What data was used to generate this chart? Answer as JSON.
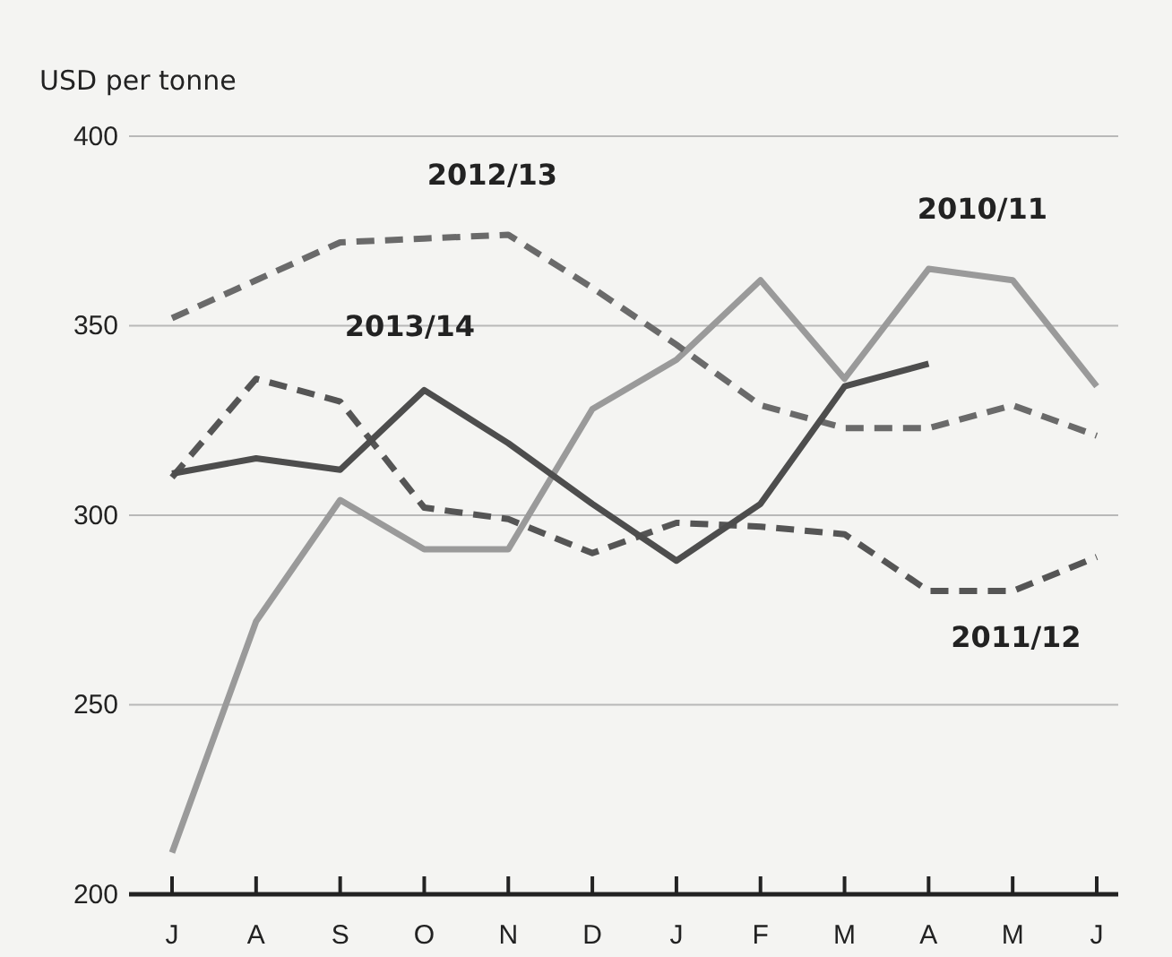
{
  "chart_data": {
    "type": "line",
    "ylabel": "USD per tonne",
    "categories": [
      "J",
      "A",
      "S",
      "O",
      "N",
      "D",
      "J",
      "F",
      "M",
      "A",
      "M",
      "J"
    ],
    "ylim": [
      200,
      400
    ],
    "yticks": [
      200,
      250,
      300,
      350,
      400
    ],
    "grid": "y",
    "series": [
      {
        "name": "2010/11",
        "color": "#9a9a9a",
        "line_style": "solid",
        "values": [
          211,
          272,
          304,
          291,
          291,
          328,
          341,
          362,
          336,
          365,
          362,
          334
        ]
      },
      {
        "name": "2011/12",
        "color": "#555555",
        "line_style": "dashed",
        "values": [
          310,
          336,
          330,
          302,
          299,
          290,
          298,
          297,
          295,
          280,
          280,
          289
        ]
      },
      {
        "name": "2012/13",
        "color": "#6a6a6a",
        "line_style": "dashed",
        "values": [
          352,
          362,
          372,
          373,
          374,
          360,
          345,
          329,
          323,
          323,
          329,
          321
        ]
      },
      {
        "name": "2013/14",
        "color": "#4d4d4d",
        "line_style": "solid",
        "values": [
          311,
          315,
          312,
          333,
          319,
          303,
          288,
          303,
          334,
          340,
          null,
          null
        ]
      }
    ]
  }
}
